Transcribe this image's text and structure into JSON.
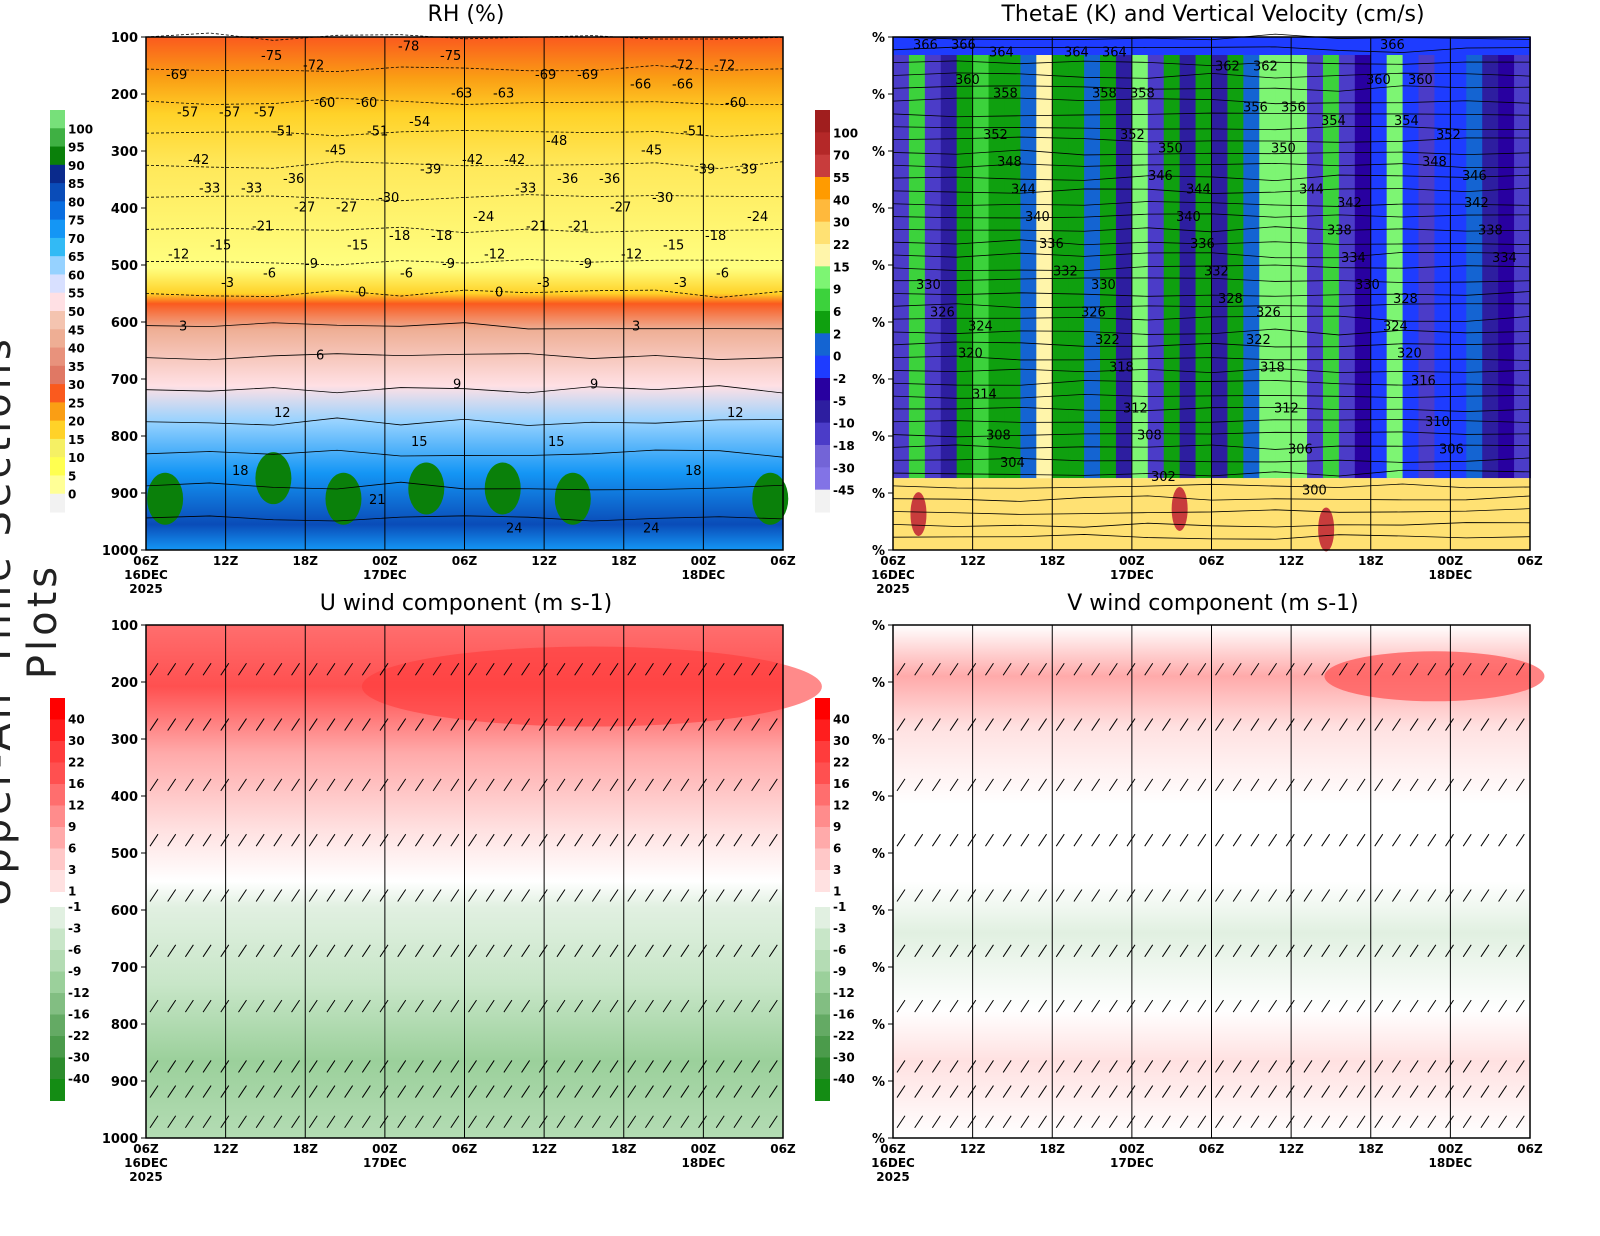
{
  "side_title": "Upper-Air Time Sections Plots",
  "x_ticks": [
    "06Z",
    "12Z",
    "18Z",
    "00Z",
    "06Z",
    "12Z",
    "18Z",
    "00Z",
    "06Z"
  ],
  "x_dates": {
    "0": "16DEC",
    "3": "17DEC",
    "7": "18DEC"
  },
  "x_year": "2025",
  "chart_data": [
    {
      "type": "heatmap",
      "title": "RH (%)",
      "y_ticks": [
        "100",
        "200",
        "300",
        "400",
        "500",
        "600",
        "700",
        "800",
        "900",
        "1000"
      ],
      "colorbar": {
        "labels": [
          "100",
          "95",
          "90",
          "85",
          "80",
          "75",
          "70",
          "65",
          "60",
          "55",
          "50",
          "45",
          "40",
          "35",
          "30",
          "25",
          "20",
          "15",
          "10",
          "5",
          "0"
        ],
        "colors": [
          "#77e07a",
          "#3fb043",
          "#0a800a",
          "#0a2a8c",
          "#0a4cb8",
          "#0a6ee0",
          "#1496f5",
          "#32baf5",
          "#96d2ff",
          "#d8e0ff",
          "#ffe0e4",
          "#f4c4b0",
          "#eeae94",
          "#e8927c",
          "#e07864",
          "#fa5a1e",
          "#fa9e14",
          "#ffd228",
          "#f5f064",
          "#ffff50",
          "#ffff96",
          "#f2f2f2"
        ]
      },
      "contour_labels": [
        "-69",
        "-72",
        "-75",
        "-69",
        "-72",
        "-75",
        "-78",
        "-69",
        "-72",
        "-57",
        "-60",
        "-63",
        "-66",
        "-57",
        "-60",
        "-63",
        "-66",
        "-60",
        "-51",
        "-54",
        "-48",
        "-51",
        "-57",
        "-51",
        "-42",
        "-45",
        "-42",
        "-45",
        "-42",
        "-36",
        "-39",
        "-36",
        "-39",
        "-36",
        "-39",
        "-33",
        "-30",
        "-33",
        "-30",
        "-33",
        "-27",
        "-24",
        "-27",
        "-24",
        "-27",
        "-18",
        "-21",
        "-18",
        "-21",
        "-18",
        "-21",
        "-15",
        "-15",
        "-15",
        "-12",
        "-12",
        "-12",
        "-9",
        "-9",
        "-9",
        "-6",
        "-6",
        "-6",
        "-3",
        "-3",
        "-3",
        "0",
        "0",
        "3",
        "3",
        "6",
        "9",
        "9",
        "12",
        "12",
        "15",
        "15",
        "18",
        "18",
        "21",
        "24",
        "24"
      ]
    },
    {
      "type": "heatmap",
      "title": "ThetaE (K) and Vertical Velocity (cm/s)",
      "y_ticks": [
        "%",
        "%",
        "%",
        "%",
        "%",
        "%",
        "%",
        "%",
        "%",
        "%"
      ],
      "colorbar": {
        "labels": [
          "100",
          "70",
          "55",
          "40",
          "30",
          "22",
          "15",
          "9",
          "6",
          "2",
          "0",
          "-2",
          "-5",
          "-10",
          "-18",
          "-30",
          "-45"
        ],
        "colors": [
          "#a01e1e",
          "#b42828",
          "#c83c3c",
          "#ff9b00",
          "#ffb93c",
          "#ffe173",
          "#fff5aa",
          "#7df573",
          "#3cd23c",
          "#0fa00f",
          "#1464d2",
          "#1e3cff",
          "#2800a0",
          "#2d1ea0",
          "#4b3cc8",
          "#7364d7",
          "#8273e6",
          "#f2f2f2"
        ]
      },
      "contour_labels": [
        "366",
        "364",
        "362",
        "360",
        "366",
        "364",
        "362",
        "366",
        "364",
        "358",
        "356",
        "354",
        "360",
        "358",
        "356",
        "360",
        "358",
        "352",
        "350",
        "348",
        "352",
        "350",
        "354",
        "352",
        "348",
        "346",
        "344",
        "346",
        "344",
        "344",
        "342",
        "342",
        "340",
        "340",
        "338",
        "338",
        "336",
        "336",
        "334",
        "334",
        "332",
        "332",
        "330",
        "330",
        "330",
        "328",
        "328",
        "326",
        "326",
        "326",
        "324",
        "324",
        "322",
        "322",
        "320",
        "320",
        "318",
        "318",
        "316",
        "314",
        "312",
        "312",
        "310",
        "308",
        "308",
        "306",
        "306",
        "304",
        "302",
        "300"
      ]
    },
    {
      "type": "heatmap",
      "title": "U wind component (m s-1)",
      "y_ticks": [
        "100",
        "200",
        "300",
        "400",
        "500",
        "600",
        "700",
        "800",
        "900",
        "1000"
      ],
      "colorbar": {
        "labels": [
          "40",
          "30",
          "22",
          "16",
          "12",
          "9",
          "6",
          "3",
          "1",
          "-1",
          "-3",
          "-6",
          "-9",
          "-12",
          "-16",
          "-22",
          "-30",
          "-40"
        ],
        "colors": [
          "#ff0000",
          "#ff1e1e",
          "#ff3c3c",
          "#ff5050",
          "#ff6e6e",
          "#ff8c8c",
          "#ffaaaa",
          "#ffc8c8",
          "#ffe1e1",
          "#ffffff",
          "#e1f0e1",
          "#c8e6c8",
          "#b4dcb4",
          "#9bd09b",
          "#82be82",
          "#64aa64",
          "#4b9b4b",
          "#2d8c2d",
          "#148c14"
        ]
      }
    },
    {
      "type": "heatmap",
      "title": "V wind component (m s-1)",
      "y_ticks": [
        "%",
        "%",
        "%",
        "%",
        "%",
        "%",
        "%",
        "%",
        "%",
        "%"
      ],
      "colorbar": {
        "labels": [
          "40",
          "30",
          "22",
          "16",
          "12",
          "9",
          "6",
          "3",
          "1",
          "-1",
          "-3",
          "-6",
          "-9",
          "-12",
          "-16",
          "-22",
          "-30",
          "-40"
        ],
        "colors": [
          "#ff0000",
          "#ff1e1e",
          "#ff3c3c",
          "#ff5050",
          "#ff6e6e",
          "#ff8c8c",
          "#ffaaaa",
          "#ffc8c8",
          "#ffe1e1",
          "#ffffff",
          "#e1f0e1",
          "#c8e6c8",
          "#b4dcb4",
          "#9bd09b",
          "#82be82",
          "#64aa64",
          "#4b9b4b",
          "#2d8c2d",
          "#148c14"
        ]
      }
    }
  ]
}
